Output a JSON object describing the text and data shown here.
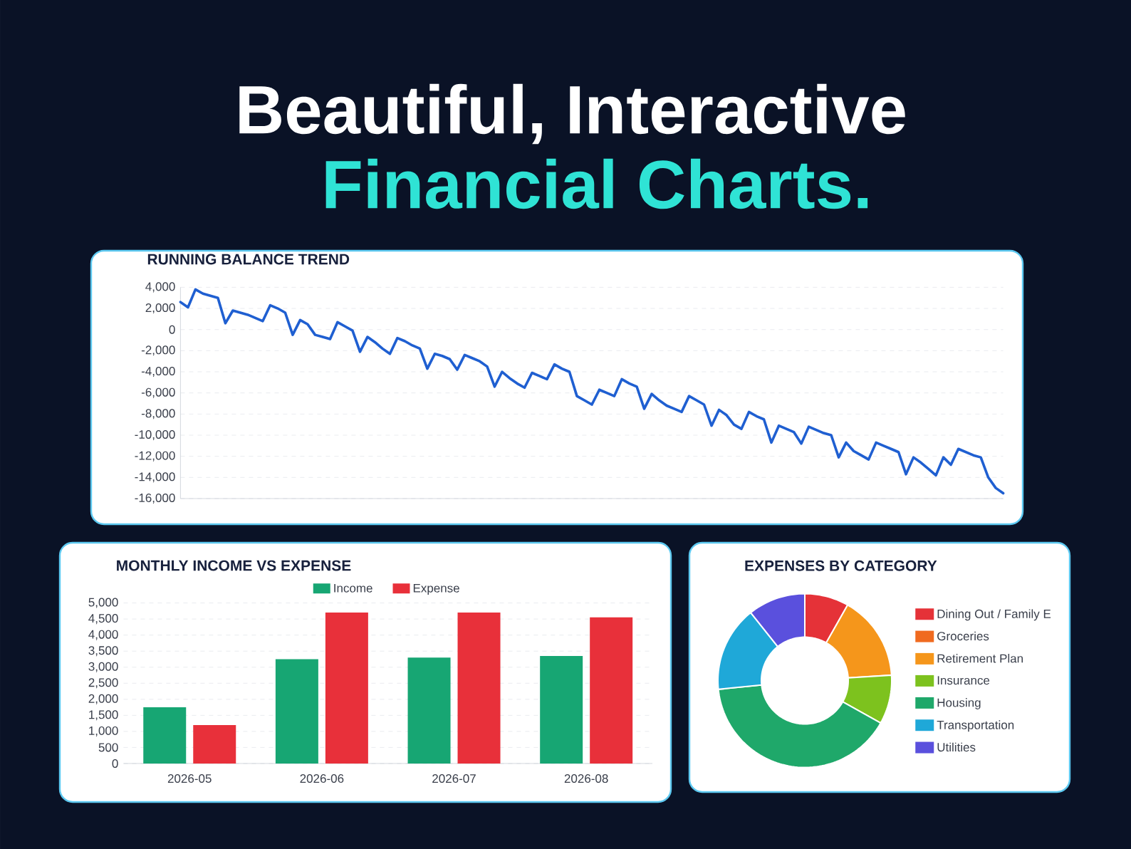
{
  "chart_data": [
    {
      "type": "other",
      "title": "Beautiful, Interactive",
      "subtitle": "Financial Charts."
    },
    {
      "type": "line",
      "title": "RUNNING BALANCE TREND",
      "categories": [
        null,
        null,
        null,
        null,
        null,
        null,
        null,
        null,
        null,
        null,
        null,
        null,
        null,
        null,
        null,
        null,
        null,
        null,
        null,
        null,
        null,
        null,
        null,
        null,
        null,
        null,
        null,
        null,
        null,
        null,
        null,
        null,
        null,
        null,
        null,
        null,
        null,
        null,
        null,
        null,
        null,
        null,
        null,
        null,
        null,
        null,
        null,
        null,
        null,
        null,
        null,
        null,
        null,
        null,
        null,
        null,
        null,
        null,
        null,
        null,
        null,
        null,
        null,
        null,
        null,
        null,
        null,
        null,
        null,
        null,
        null,
        null,
        null,
        null,
        null,
        null,
        null,
        null,
        null,
        null,
        null,
        null,
        null,
        null,
        null,
        null,
        null,
        null,
        null,
        null,
        null,
        null,
        null,
        null,
        null,
        null,
        null,
        null,
        null,
        null,
        null,
        null,
        null,
        null,
        null,
        null,
        null,
        null,
        null,
        null,
        null
      ],
      "values": [
        2600,
        2100,
        3800,
        3400,
        3200,
        3000,
        600,
        1800,
        1600,
        1400,
        1100,
        800,
        2300,
        2000,
        1600,
        -500,
        900,
        500,
        -500,
        -700,
        -900,
        700,
        300,
        -100,
        -2100,
        -700,
        -1200,
        -1800,
        -2300,
        -800,
        -1100,
        -1500,
        -1800,
        -3700,
        -2300,
        -2500,
        -2800,
        -3800,
        -2400,
        -2700,
        -3000,
        -3500,
        -5400,
        -4000,
        -4600,
        -5100,
        -5500,
        -4100,
        -4400,
        -4700,
        -3300,
        -3700,
        -4000,
        -6300,
        -6700,
        -7100,
        -5700,
        -6000,
        -6300,
        -4700,
        -5100,
        -5400,
        -7500,
        -6100,
        -6700,
        -7200,
        -7500,
        -7800,
        -6300,
        -6700,
        -7100,
        -9100,
        -7600,
        -8100,
        -9000,
        -9400,
        -7800,
        -8200,
        -8500,
        -10700,
        -9100,
        -9400,
        -9700,
        -10800,
        -9200,
        -9500,
        -9800,
        -10000,
        -12100,
        -10700,
        -11500,
        -11900,
        -12300,
        -10700,
        -11000,
        -11300,
        -11600,
        -13700,
        -12100,
        -12600,
        -13200,
        -13800,
        -12100,
        -12800,
        -11300,
        -11600,
        -11900,
        -12100,
        -14000,
        -15000,
        -15500
      ],
      "color": "#1f5fd1",
      "ylim": [
        -16000,
        4000
      ],
      "yticks": [
        {
          "value": 4000,
          "label": "4,000"
        },
        {
          "value": 2000,
          "label": "2,000"
        },
        0,
        {
          "value": -2000,
          "label": "-2,000"
        },
        {
          "value": -4000,
          "label": "-4,000"
        },
        {
          "value": -6000,
          "label": "-6,000"
        },
        {
          "value": -8000,
          "label": "-8,000"
        },
        {
          "value": -10000,
          "label": "-10,000"
        },
        {
          "value": -12000,
          "label": "-12,000"
        },
        {
          "value": -14000,
          "label": "-14,000"
        },
        {
          "value": -16000,
          "label": "-16,000"
        }
      ],
      "grid": "y"
    },
    {
      "type": "bar",
      "title": "MONTHLY INCOME VS EXPENSE",
      "categories": [
        "2026-05",
        "2026-06",
        "2026-07",
        "2026-08"
      ],
      "series": [
        {
          "name": "Income",
          "color": "#17a673",
          "values": [
            1750,
            3250,
            3300,
            3350
          ]
        },
        {
          "name": "Expense",
          "color": "#e8303a",
          "values": [
            1200,
            4700,
            4700,
            4550
          ]
        }
      ],
      "ylim": [
        0,
        5000
      ],
      "yticks": [
        0,
        500,
        {
          "value": 1000,
          "label": "1,000"
        },
        {
          "value": 1500,
          "label": "1,500"
        },
        {
          "value": 2000,
          "label": "2,000"
        },
        {
          "value": 2500,
          "label": "2,500"
        },
        {
          "value": 3000,
          "label": "3,000"
        },
        {
          "value": 3500,
          "label": "3,500"
        },
        {
          "value": 4000,
          "label": "4,000"
        },
        {
          "value": 4500,
          "label": "4,500"
        },
        {
          "value": 5000,
          "label": "5,000"
        }
      ],
      "grid": "y",
      "legend": "top"
    },
    {
      "type": "donut",
      "title": "EXPENSES BY CATEGORY",
      "categories": [
        "Dining Out / Family E",
        "Groceries",
        "Retirement Plan",
        "Insurance",
        "Housing",
        "Transportation",
        "Utilities"
      ],
      "values": [
        8.2,
        0,
        15.8,
        9.1,
        40.3,
        15.9,
        10.7
      ],
      "colors": [
        "#e53238",
        "#f06a1f",
        "#f5961b",
        "#7dc21e",
        "#1fa86a",
        "#1fa8d8",
        "#5a50dd"
      ],
      "legend": "right"
    }
  ]
}
